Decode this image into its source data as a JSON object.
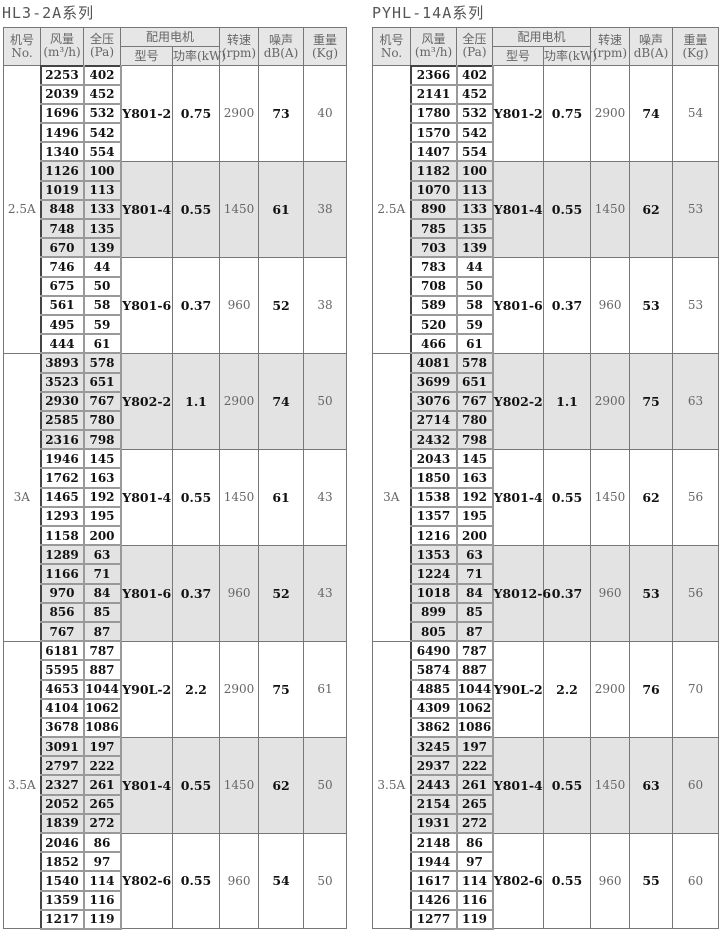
{
  "header": {
    "machine": "机号",
    "machine_en": "No.",
    "flow": "风量",
    "flow_unit": "(m³/h)",
    "pressure": "全压",
    "pressure_unit": "(Pa)",
    "motor": "配用电机",
    "model": "型号",
    "power": "功率(kW)",
    "speed": "转速",
    "speed_unit": "(rpm)",
    "noise": "噪声",
    "noise_unit": "dB(A)",
    "weight": "重量",
    "weight_unit": "(Kg)"
  },
  "tables": [
    {
      "title": "HL3-2A系列",
      "groups": [
        {
          "machine": "2.5A",
          "motors": [
            {
              "model": "Y801-2",
              "power": "0.75",
              "rpm": "2900",
              "noise": "73",
              "weight": "40",
              "rows": [
                [
                  "2253",
                  "402"
                ],
                [
                  "2039",
                  "452"
                ],
                [
                  "1696",
                  "532"
                ],
                [
                  "1496",
                  "542"
                ],
                [
                  "1340",
                  "554"
                ]
              ]
            },
            {
              "model": "Y801-4",
              "power": "0.55",
              "rpm": "1450",
              "noise": "61",
              "weight": "38",
              "rows": [
                [
                  "1126",
                  "100"
                ],
                [
                  "1019",
                  "113"
                ],
                [
                  "848",
                  "133"
                ],
                [
                  "748",
                  "135"
                ],
                [
                  "670",
                  "139"
                ]
              ]
            },
            {
              "model": "Y801-6",
              "power": "0.37",
              "rpm": "960",
              "noise": "52",
              "weight": "38",
              "rows": [
                [
                  "746",
                  "44"
                ],
                [
                  "675",
                  "50"
                ],
                [
                  "561",
                  "58"
                ],
                [
                  "495",
                  "59"
                ],
                [
                  "444",
                  "61"
                ]
              ]
            }
          ]
        },
        {
          "machine": "3A",
          "motors": [
            {
              "model": "Y802-2",
              "power": "1.1",
              "rpm": "2900",
              "noise": "74",
              "weight": "50",
              "rows": [
                [
                  "3893",
                  "578"
                ],
                [
                  "3523",
                  "651"
                ],
                [
                  "2930",
                  "767"
                ],
                [
                  "2585",
                  "780"
                ],
                [
                  "2316",
                  "798"
                ]
              ]
            },
            {
              "model": "Y801-4",
              "power": "0.55",
              "rpm": "1450",
              "noise": "61",
              "weight": "43",
              "rows": [
                [
                  "1946",
                  "145"
                ],
                [
                  "1762",
                  "163"
                ],
                [
                  "1465",
                  "192"
                ],
                [
                  "1293",
                  "195"
                ],
                [
                  "1158",
                  "200"
                ]
              ]
            },
            {
              "model": "Y801-6",
              "power": "0.37",
              "rpm": "960",
              "noise": "52",
              "weight": "43",
              "rows": [
                [
                  "1289",
                  "63"
                ],
                [
                  "1166",
                  "71"
                ],
                [
                  "970",
                  "84"
                ],
                [
                  "856",
                  "85"
                ],
                [
                  "767",
                  "87"
                ]
              ]
            }
          ]
        },
        {
          "machine": "3.5A",
          "motors": [
            {
              "model": "Y90L-2",
              "power": "2.2",
              "rpm": "2900",
              "noise": "75",
              "weight": "61",
              "rows": [
                [
                  "6181",
                  "787"
                ],
                [
                  "5595",
                  "887"
                ],
                [
                  "4653",
                  "1044"
                ],
                [
                  "4104",
                  "1062"
                ],
                [
                  "3678",
                  "1086"
                ]
              ]
            },
            {
              "model": "Y801-4",
              "power": "0.55",
              "rpm": "1450",
              "noise": "62",
              "weight": "50",
              "rows": [
                [
                  "3091",
                  "197"
                ],
                [
                  "2797",
                  "222"
                ],
                [
                  "2327",
                  "261"
                ],
                [
                  "2052",
                  "265"
                ],
                [
                  "1839",
                  "272"
                ]
              ]
            },
            {
              "model": "Y802-6",
              "power": "0.55",
              "rpm": "960",
              "noise": "54",
              "weight": "50",
              "rows": [
                [
                  "2046",
                  "86"
                ],
                [
                  "1852",
                  "97"
                ],
                [
                  "1540",
                  "114"
                ],
                [
                  "1359",
                  "116"
                ],
                [
                  "1217",
                  "119"
                ]
              ]
            }
          ]
        }
      ]
    },
    {
      "title": "PYHL-14A系列",
      "groups": [
        {
          "machine": "2.5A",
          "motors": [
            {
              "model": "Y801-2",
              "power": "0.75",
              "rpm": "2900",
              "noise": "74",
              "weight": "54",
              "rows": [
                [
                  "2366",
                  "402"
                ],
                [
                  "2141",
                  "452"
                ],
                [
                  "1780",
                  "532"
                ],
                [
                  "1570",
                  "542"
                ],
                [
                  "1407",
                  "554"
                ]
              ]
            },
            {
              "model": "Y801-4",
              "power": "0.55",
              "rpm": "1450",
              "noise": "62",
              "weight": "53",
              "rows": [
                [
                  "1182",
                  "100"
                ],
                [
                  "1070",
                  "113"
                ],
                [
                  "890",
                  "133"
                ],
                [
                  "785",
                  "135"
                ],
                [
                  "703",
                  "139"
                ]
              ]
            },
            {
              "model": "Y801-6",
              "power": "0.37",
              "rpm": "960",
              "noise": "53",
              "weight": "53",
              "rows": [
                [
                  "783",
                  "44"
                ],
                [
                  "708",
                  "50"
                ],
                [
                  "589",
                  "58"
                ],
                [
                  "520",
                  "59"
                ],
                [
                  "466",
                  "61"
                ]
              ]
            }
          ]
        },
        {
          "machine": "3A",
          "motors": [
            {
              "model": "Y802-2",
              "power": "1.1",
              "rpm": "2900",
              "noise": "75",
              "weight": "63",
              "rows": [
                [
                  "4081",
                  "578"
                ],
                [
                  "3699",
                  "651"
                ],
                [
                  "3076",
                  "767"
                ],
                [
                  "2714",
                  "780"
                ],
                [
                  "2432",
                  "798"
                ]
              ]
            },
            {
              "model": "Y801-4",
              "power": "0.55",
              "rpm": "1450",
              "noise": "62",
              "weight": "56",
              "rows": [
                [
                  "2043",
                  "145"
                ],
                [
                  "1850",
                  "163"
                ],
                [
                  "1538",
                  "192"
                ],
                [
                  "1357",
                  "195"
                ],
                [
                  "1216",
                  "200"
                ]
              ]
            },
            {
              "model": "Y8012-6",
              "power": "0.37",
              "rpm": "960",
              "noise": "53",
              "weight": "56",
              "rows": [
                [
                  "1353",
                  "63"
                ],
                [
                  "1224",
                  "71"
                ],
                [
                  "1018",
                  "84"
                ],
                [
                  "899",
                  "85"
                ],
                [
                  "805",
                  "87"
                ]
              ]
            }
          ]
        },
        {
          "machine": "3.5A",
          "motors": [
            {
              "model": "Y90L-2",
              "power": "2.2",
              "rpm": "2900",
              "noise": "76",
              "weight": "70",
              "rows": [
                [
                  "6490",
                  "787"
                ],
                [
                  "5874",
                  "887"
                ],
                [
                  "4885",
                  "1044"
                ],
                [
                  "4309",
                  "1062"
                ],
                [
                  "3862",
                  "1086"
                ]
              ]
            },
            {
              "model": "Y801-4",
              "power": "0.55",
              "rpm": "1450",
              "noise": "63",
              "weight": "60",
              "rows": [
                [
                  "3245",
                  "197"
                ],
                [
                  "2937",
                  "222"
                ],
                [
                  "2443",
                  "261"
                ],
                [
                  "2154",
                  "265"
                ],
                [
                  "1931",
                  "272"
                ]
              ]
            },
            {
              "model": "Y802-6",
              "power": "0.55",
              "rpm": "960",
              "noise": "55",
              "weight": "60",
              "rows": [
                [
                  "2148",
                  "86"
                ],
                [
                  "1944",
                  "97"
                ],
                [
                  "1617",
                  "114"
                ],
                [
                  "1426",
                  "116"
                ],
                [
                  "1277",
                  "119"
                ]
              ]
            }
          ]
        }
      ]
    }
  ]
}
